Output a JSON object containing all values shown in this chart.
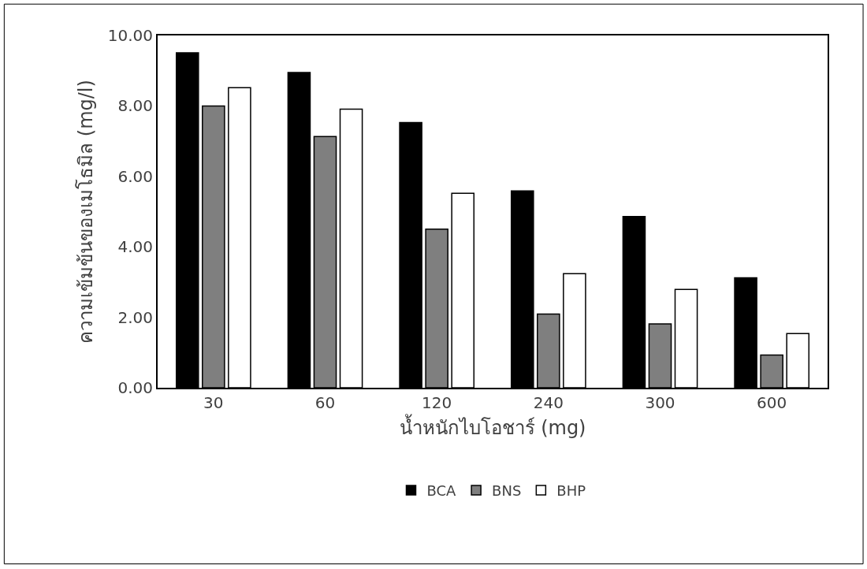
{
  "chart_data": {
    "type": "bar",
    "xlabel": "น้ำหนักไบโอชาร์ (mg)",
    "ylabel": "ความเข้มข้นของเมโธมิล (mg/l)",
    "categories": [
      "30",
      "60",
      "120",
      "240",
      "300",
      "600"
    ],
    "series": [
      {
        "name": "BCA",
        "color": "#000000",
        "values": [
          9.51,
          8.95,
          7.53,
          5.59,
          4.86,
          3.12
        ]
      },
      {
        "name": "BNS",
        "color": "#7f7f7f",
        "values": [
          8.0,
          7.13,
          4.5,
          2.09,
          1.81,
          0.93
        ]
      },
      {
        "name": "BHP",
        "color": "#ffffff",
        "values": [
          8.52,
          7.91,
          5.52,
          3.24,
          2.79,
          1.54
        ]
      }
    ],
    "ylim": [
      0,
      10
    ],
    "yticks": [
      {
        "value": 0,
        "label": "0.00"
      },
      {
        "value": 2,
        "label": "2.00"
      },
      {
        "value": 4,
        "label": "4.00"
      },
      {
        "value": 6,
        "label": "6.00"
      },
      {
        "value": 8,
        "label": "8.00"
      },
      {
        "value": 10,
        "label": "10.00"
      }
    ],
    "legend": "bottom"
  }
}
